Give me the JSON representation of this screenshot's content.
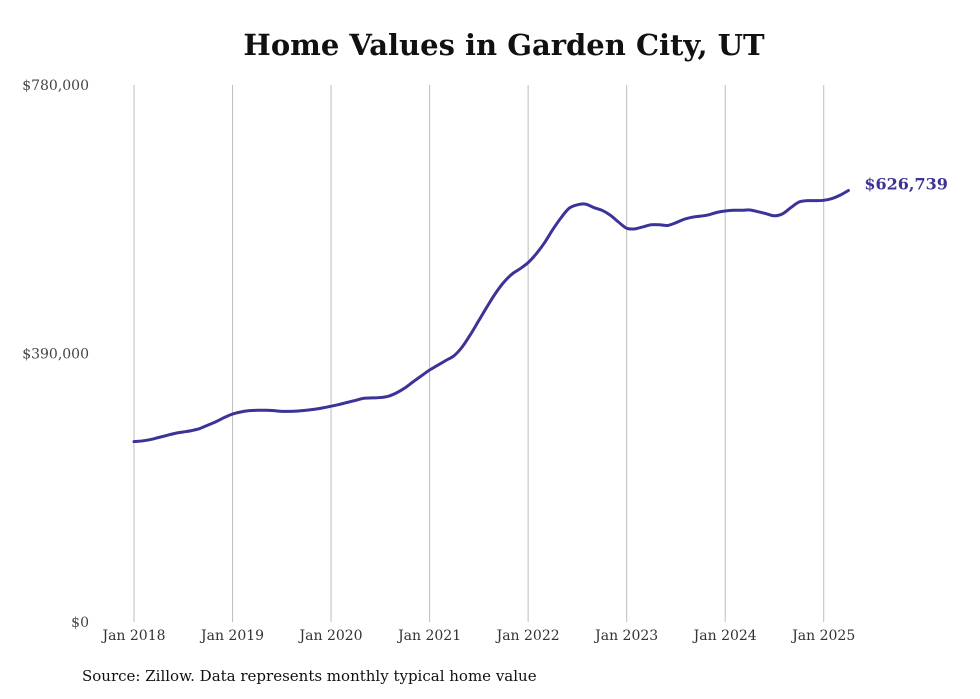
{
  "chart_data": {
    "type": "line",
    "title": "Home Values in Garden City, UT",
    "xlabel": "",
    "ylabel": "",
    "ylim": [
      0,
      780000
    ],
    "x_start": "2018-01",
    "x_end": "2025-07",
    "y_ticks": [
      {
        "value": 0,
        "label": "$0"
      },
      {
        "value": 390000,
        "label": "$390,000"
      },
      {
        "value": 780000,
        "label": "$780,000"
      }
    ],
    "x_ticks": [
      {
        "date": "2018-01",
        "label": "Jan 2018"
      },
      {
        "date": "2019-01",
        "label": "Jan 2019"
      },
      {
        "date": "2020-01",
        "label": "Jan 2020"
      },
      {
        "date": "2021-01",
        "label": "Jan 2021"
      },
      {
        "date": "2022-01",
        "label": "Jan 2022"
      },
      {
        "date": "2023-01",
        "label": "Jan 2023"
      },
      {
        "date": "2024-01",
        "label": "Jan 2024"
      },
      {
        "date": "2025-01",
        "label": "Jan 2025"
      }
    ],
    "grid": "vertical",
    "series": [
      {
        "name": "Typical home value",
        "color": "#3b3397",
        "end_label": "$626,739",
        "values": [
          262000,
          263000,
          265000,
          268000,
          271000,
          274000,
          276000,
          278000,
          281000,
          286000,
          291000,
          297000,
          302000,
          305000,
          307000,
          307500,
          307500,
          307000,
          306000,
          306000,
          306500,
          307500,
          309000,
          311000,
          313500,
          316000,
          319000,
          322000,
          325000,
          325500,
          326000,
          328000,
          333000,
          340000,
          349000,
          357500,
          366000,
          373000,
          380000,
          387000,
          400000,
          418000,
          438000,
          458000,
          477000,
          493000,
          505000,
          513000,
          522000,
          535000,
          551000,
          570000,
          587000,
          601000,
          606000,
          607000,
          602000,
          598000,
          591000,
          581000,
          572000,
          571000,
          574000,
          577000,
          577000,
          576000,
          580000,
          585000,
          588000,
          589500,
          591500,
          595000,
          597000,
          598000,
          598000,
          598500,
          596000,
          593000,
          590000,
          593000,
          602000,
          610000,
          612000,
          612000,
          612500,
          615000,
          620000,
          626739
        ]
      }
    ]
  },
  "footer": {
    "source": "Source: Zillow. Data represents monthly typical home value"
  }
}
